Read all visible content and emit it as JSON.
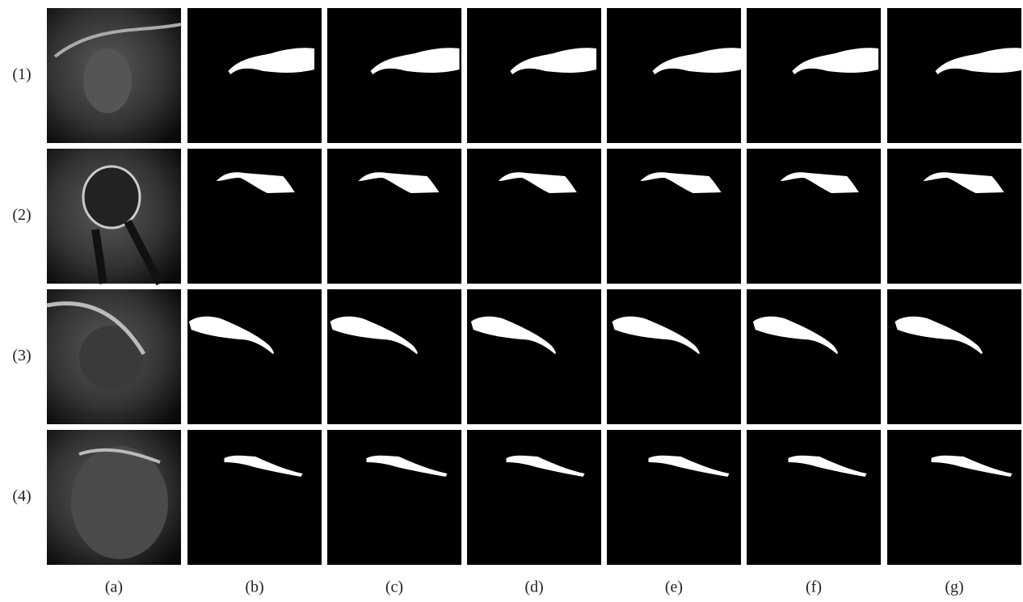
{
  "figure": {
    "row_labels": [
      "(1)",
      "(2)",
      "(3)",
      "(4)"
    ],
    "column_labels": [
      "(a)",
      "(b)",
      "(c)",
      "(d)",
      "(e)",
      "(f)",
      "(g)"
    ]
  }
}
